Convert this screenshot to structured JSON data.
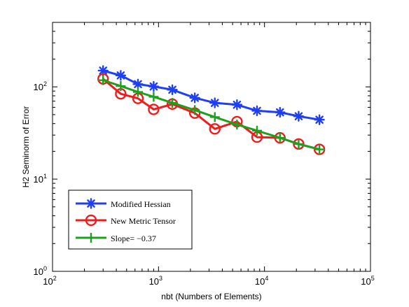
{
  "chart_data": {
    "type": "line",
    "title": "",
    "xlabel": "nbt (Numbers of Elements)",
    "ylabel": "H2 Seminorm of Error",
    "xscale": "log",
    "yscale": "log",
    "xlim": [
      100,
      100000
    ],
    "ylim": [
      1,
      500
    ],
    "grid": false,
    "legend_position": "bottom-left",
    "x_ticks": [
      {
        "base": "10",
        "exp": "2",
        "value": 100
      },
      {
        "base": "10",
        "exp": "3",
        "value": 1000
      },
      {
        "base": "10",
        "exp": "4",
        "value": 10000
      },
      {
        "base": "10",
        "exp": "5",
        "value": 100000
      }
    ],
    "y_ticks": [
      {
        "base": "10",
        "exp": "0",
        "value": 1
      },
      {
        "base": "10",
        "exp": "1",
        "value": 10
      },
      {
        "base": "10",
        "exp": "2",
        "value": 100
      }
    ],
    "series": [
      {
        "name": "Modified Hessian",
        "color": "#1f3ff5",
        "marker": "asterisk",
        "x": [
          300,
          440,
          640,
          900,
          1350,
          2200,
          3400,
          5500,
          8500,
          14000,
          21000,
          33000
        ],
        "y": [
          150,
          133,
          107,
          101,
          93,
          76,
          67,
          64,
          55,
          53,
          48,
          44
        ]
      },
      {
        "name": "New Metric Tensor",
        "color": "#ee1c1c",
        "marker": "circle",
        "x": [
          300,
          440,
          640,
          900,
          1350,
          2200,
          3400,
          5500,
          8500,
          14000,
          21000,
          33000
        ],
        "y": [
          122,
          84,
          75,
          57,
          65,
          52,
          35,
          42,
          28.5,
          28,
          24,
          21
        ]
      },
      {
        "name": "Slope= −0.37",
        "color": "#1ea01e",
        "marker": "plus",
        "x": [
          300,
          440,
          640,
          900,
          1350,
          2200,
          3400,
          5500,
          8500,
          14000,
          21000,
          33000
        ],
        "y": [
          118,
          102,
          88,
          78,
          67,
          56,
          47,
          39,
          33.5,
          28,
          24,
          21
        ]
      }
    ]
  }
}
